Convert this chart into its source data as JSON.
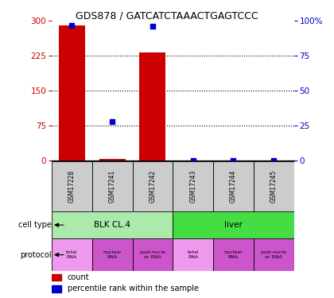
{
  "title": "GDS878 / GATCATCTAAACTGAGTCCC",
  "samples": [
    "GSM17228",
    "GSM17241",
    "GSM17242",
    "GSM17243",
    "GSM17244",
    "GSM17245"
  ],
  "counts": [
    290,
    5,
    232,
    0,
    0,
    0
  ],
  "percentiles": [
    97,
    28,
    96,
    0,
    0,
    0
  ],
  "ylim_left": [
    0,
    300
  ],
  "ylim_right": [
    0,
    100
  ],
  "yticks_left": [
    0,
    75,
    150,
    225,
    300
  ],
  "yticks_right": [
    0,
    25,
    50,
    75,
    100
  ],
  "ytick_right_labels": [
    "0",
    "25",
    "50",
    "75",
    "100%"
  ],
  "bar_color": "#cc0000",
  "dot_color": "#0000cc",
  "cell_types": [
    {
      "label": "BLK CL.4",
      "span": [
        0,
        3
      ],
      "color": "#aaeaaa"
    },
    {
      "label": "liver",
      "span": [
        3,
        6
      ],
      "color": "#44dd44"
    }
  ],
  "protocols": [
    {
      "label": "total\nRNA",
      "color": "#ee99ee"
    },
    {
      "label": "nuclear\nRNA",
      "color": "#cc55cc"
    },
    {
      "label": "post-nucle\nar RNA",
      "color": "#cc55cc"
    },
    {
      "label": "total\nRNA",
      "color": "#ee99ee"
    },
    {
      "label": "nuclear\nRNA",
      "color": "#cc55cc"
    },
    {
      "label": "post-nucle\nar RNA",
      "color": "#cc55cc"
    }
  ],
  "legend_count_color": "#cc0000",
  "legend_dot_color": "#0000cc",
  "left_axis_color": "#cc0000",
  "right_axis_color": "#0000cc",
  "sample_bg_color": "#cccccc",
  "gridline_color": "black"
}
